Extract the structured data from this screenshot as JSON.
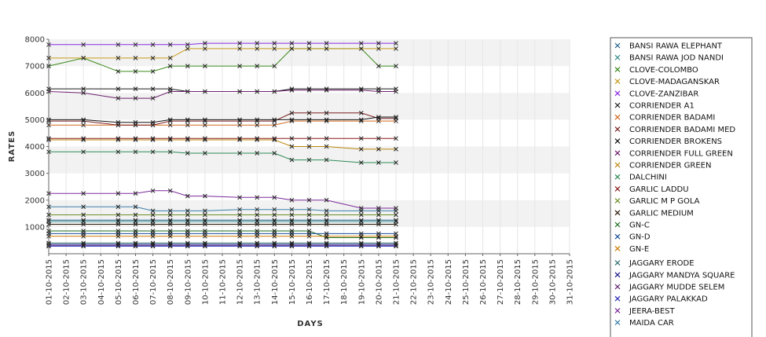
{
  "chart_data": {
    "type": "line",
    "xlabel": "DAYS",
    "ylabel": "RATES",
    "ylim": [
      0,
      8000
    ],
    "yticks": [
      1000,
      2000,
      3000,
      4000,
      5000,
      6000,
      7000,
      8000
    ],
    "grid": "horizontal bands",
    "legend_position": "right",
    "x": [
      "01-10-2015",
      "02-10-2015",
      "03-10-2015",
      "04-10-2015",
      "05-10-2015",
      "06-10-2015",
      "07-10-2015",
      "08-10-2015",
      "09-10-2015",
      "10-10-2015",
      "11-10-2015",
      "12-10-2015",
      "13-10-2015",
      "14-10-2015",
      "15-10-2015",
      "16-10-2015",
      "17-10-2015",
      "18-10-2015",
      "19-10-2015",
      "20-10-2015",
      "21-10-2015",
      "22-10-2015",
      "23-10-2015",
      "24-10-2015",
      "25-10-2015",
      "26-10-2015",
      "27-10-2015",
      "28-10-2015",
      "29-10-2015",
      "30-10-2015",
      "31-10-2015"
    ],
    "series": [
      {
        "name": "BANSI RAWA ELEPHANT",
        "color": "#1f5f8b",
        "x": [
          0,
          2,
          4,
          5,
          6,
          7,
          8,
          9,
          11,
          12,
          13,
          14,
          15,
          16,
          18,
          19,
          20
        ],
        "values": [
          1250,
          1250,
          1250,
          1250,
          1250,
          1250,
          1250,
          1250,
          1250,
          1250,
          1250,
          1250,
          1250,
          1250,
          1250,
          1250,
          1250
        ]
      },
      {
        "name": "BANSI RAWA JOD NANDI",
        "color": "#3a8f8f",
        "x": [
          0,
          2,
          4,
          5,
          6,
          7,
          8,
          9,
          11,
          12,
          13,
          14,
          15,
          16,
          18,
          19,
          20
        ],
        "values": [
          1200,
          1200,
          1200,
          1200,
          1200,
          1200,
          1200,
          1200,
          1200,
          1200,
          1200,
          1200,
          1200,
          1200,
          1200,
          1200,
          1200
        ]
      },
      {
        "name": "CLOVE-COLOMBO",
        "color": "#3b8a1a",
        "x": [
          0,
          2,
          4,
          5,
          6,
          7,
          8,
          9,
          11,
          12,
          13,
          14,
          15,
          16,
          18,
          19,
          20
        ],
        "values": [
          7000,
          7300,
          6800,
          6800,
          6800,
          7000,
          7000,
          7000,
          7000,
          7000,
          7000,
          7650,
          7650,
          7650,
          7650,
          7000,
          7000
        ]
      },
      {
        "name": "CLOVE-MADAGANSKAR",
        "color": "#c79a1a",
        "x": [
          0,
          2,
          4,
          5,
          6,
          7,
          8,
          9,
          11,
          12,
          13,
          14,
          15,
          16,
          18,
          19,
          20
        ],
        "values": [
          7300,
          7300,
          7300,
          7300,
          7300,
          7300,
          7650,
          7650,
          7650,
          7650,
          7650,
          7650,
          7650,
          7650,
          7650,
          7650,
          7650
        ]
      },
      {
        "name": "CLOVE-ZANZIBAR",
        "color": "#8a2be2",
        "x": [
          0,
          2,
          4,
          5,
          6,
          7,
          8,
          9,
          11,
          12,
          13,
          14,
          15,
          16,
          18,
          19,
          20
        ],
        "values": [
          7800,
          7800,
          7800,
          7800,
          7800,
          7800,
          7800,
          7850,
          7850,
          7850,
          7850,
          7850,
          7850,
          7850,
          7850,
          7850,
          7850
        ]
      },
      {
        "name": "CORRIENDER A1",
        "color": "#1a1a1a",
        "x": [
          0,
          2,
          4,
          5,
          6,
          7,
          8,
          9,
          11,
          12,
          13,
          14,
          15,
          16,
          18,
          19,
          20
        ],
        "values": [
          6150,
          6150,
          6150,
          6150,
          6150,
          6150,
          6050,
          6050,
          6050,
          6050,
          6050,
          6150,
          6150,
          6150,
          6150,
          6150,
          6150
        ]
      },
      {
        "name": "CORRIENDER BADAMI",
        "color": "#d2691e",
        "x": [
          0,
          2,
          4,
          5,
          6,
          7,
          8,
          9,
          11,
          12,
          13,
          14,
          15,
          16,
          18,
          19,
          20
        ],
        "values": [
          4800,
          4800,
          4800,
          4800,
          4800,
          4800,
          4800,
          4800,
          4800,
          4800,
          4800,
          4950,
          4950,
          4950,
          4950,
          4950,
          4950
        ]
      },
      {
        "name": "CORRIENDER BADAMI MED",
        "color": "#7a1f1f",
        "x": [
          0,
          2,
          4,
          5,
          6,
          7,
          8,
          9,
          11,
          12,
          13,
          14,
          15,
          16,
          18,
          19,
          20
        ],
        "values": [
          4950,
          4950,
          4800,
          4800,
          4800,
          4950,
          4950,
          4950,
          4950,
          4950,
          4950,
          5250,
          5250,
          5250,
          5250,
          5050,
          5050
        ]
      },
      {
        "name": "CORRIENDER BROKENS",
        "color": "#111111",
        "x": [
          0,
          2,
          4,
          5,
          6,
          7,
          8,
          9,
          11,
          12,
          13,
          14,
          15,
          16,
          18,
          19,
          20
        ],
        "values": [
          5000,
          5000,
          4900,
          4900,
          4900,
          5000,
          5000,
          5000,
          5000,
          5000,
          5000,
          5000,
          5000,
          5000,
          5000,
          5100,
          5100
        ]
      },
      {
        "name": "CORRIENDER FULL GREEN",
        "color": "#6b1f6b",
        "x": [
          0,
          2,
          4,
          5,
          6,
          7,
          8,
          9,
          11,
          12,
          13,
          14,
          15,
          16,
          18,
          19,
          20
        ],
        "values": [
          6050,
          6000,
          5800,
          5800,
          5800,
          6050,
          6050,
          6050,
          6050,
          6050,
          6050,
          6100,
          6100,
          6100,
          6100,
          6050,
          6050
        ]
      },
      {
        "name": "CORRIENDER GREEN",
        "color": "#b8860b",
        "x": [
          0,
          2,
          4,
          5,
          6,
          7,
          8,
          9,
          11,
          12,
          13,
          14,
          15,
          16,
          18,
          19,
          20
        ],
        "values": [
          4250,
          4250,
          4250,
          4250,
          4250,
          4250,
          4250,
          4250,
          4250,
          4250,
          4250,
          4000,
          4000,
          4000,
          3900,
          3900,
          3900
        ]
      },
      {
        "name": "DALCHINI",
        "color": "#2e8b57",
        "x": [
          0,
          2,
          4,
          5,
          6,
          7,
          8,
          9,
          11,
          12,
          13,
          14,
          15,
          16,
          18,
          19,
          20
        ],
        "values": [
          3800,
          3800,
          3800,
          3800,
          3800,
          3800,
          3750,
          3750,
          3750,
          3750,
          3750,
          3500,
          3500,
          3500,
          3400,
          3400,
          3400
        ]
      },
      {
        "name": "GARLIC LADDU",
        "color": "#8b1a1a",
        "x": [
          0,
          2,
          4,
          5,
          6,
          7,
          8,
          9,
          11,
          12,
          13,
          14,
          15,
          16,
          18,
          19,
          20
        ],
        "values": [
          4300,
          4300,
          4300,
          4300,
          4300,
          4300,
          4300,
          4300,
          4300,
          4300,
          4300,
          4300,
          4300,
          4300,
          4300,
          4300,
          4300
        ]
      },
      {
        "name": "GARLIC M P GOLA",
        "color": "#6b8e23",
        "x": [
          0,
          2,
          4,
          5,
          6,
          7,
          8,
          9,
          11,
          12,
          13,
          14,
          15,
          16,
          18,
          19,
          20
        ],
        "values": [
          1450,
          1450,
          1450,
          1450,
          1450,
          1450,
          1450,
          1450,
          1450,
          1450,
          1450,
          1450,
          1450,
          1450,
          1450,
          1450,
          1450
        ]
      },
      {
        "name": "GARLIC MEDIUM",
        "color": "#2b1a0a",
        "x": [
          0,
          2,
          4,
          5,
          6,
          7,
          8,
          9,
          11,
          12,
          13,
          14,
          15,
          16,
          18,
          19,
          20
        ],
        "values": [
          1100,
          1100,
          1100,
          1100,
          1100,
          1100,
          1100,
          1100,
          1100,
          1100,
          1100,
          1100,
          1100,
          1100,
          1100,
          1100,
          1100
        ]
      },
      {
        "name": "GN-C",
        "color": "#1a6b1a",
        "x": [
          0,
          2,
          4,
          5,
          6,
          7,
          8,
          9,
          11,
          12,
          13,
          14,
          15,
          16,
          18,
          19,
          20
        ],
        "values": [
          850,
          850,
          850,
          850,
          850,
          850,
          850,
          850,
          850,
          850,
          850,
          850,
          850,
          600,
          600,
          600,
          600
        ]
      },
      {
        "name": "GN-D",
        "color": "#1a4f9b",
        "x": [
          0,
          2,
          4,
          5,
          6,
          7,
          8,
          9,
          11,
          12,
          13,
          14,
          15,
          16,
          18,
          19,
          20
        ],
        "values": [
          750,
          750,
          750,
          750,
          750,
          750,
          750,
          750,
          750,
          750,
          750,
          750,
          750,
          750,
          750,
          750,
          750
        ]
      },
      {
        "name": "GN-E",
        "color": "#cc7a00",
        "x": [
          0,
          2,
          4,
          5,
          6,
          7,
          8,
          9,
          11,
          12,
          13,
          14,
          15,
          16,
          18,
          19,
          20
        ],
        "values": [
          650,
          650,
          650,
          650,
          650,
          650,
          650,
          650,
          650,
          650,
          650,
          650,
          650,
          650,
          650,
          650,
          650
        ]
      },
      {
        "name": "JAGGARY ERODE",
        "color": "#2f6f6f",
        "x": [
          0,
          2,
          4,
          5,
          6,
          7,
          8,
          9,
          11,
          12,
          13,
          14,
          15,
          16,
          18,
          19,
          20
        ],
        "values": [
          400,
          400,
          400,
          400,
          400,
          400,
          400,
          400,
          400,
          400,
          400,
          400,
          400,
          400,
          400,
          400,
          400
        ]
      },
      {
        "name": "JAGGARY MANDYA SQUARE",
        "color": "#1a1a8b",
        "x": [
          0,
          2,
          4,
          5,
          6,
          7,
          8,
          9,
          11,
          12,
          13,
          14,
          15,
          16,
          18,
          19,
          20
        ],
        "values": [
          350,
          350,
          350,
          350,
          350,
          350,
          350,
          350,
          350,
          350,
          350,
          350,
          350,
          350,
          350,
          350,
          350
        ]
      },
      {
        "name": "JAGGARY MUDDE SELEM",
        "color": "#5b1a6b",
        "x": [
          0,
          2,
          4,
          5,
          6,
          7,
          8,
          9,
          11,
          12,
          13,
          14,
          15,
          16,
          18,
          19,
          20
        ],
        "values": [
          300,
          300,
          300,
          300,
          300,
          300,
          300,
          300,
          300,
          300,
          300,
          300,
          300,
          300,
          300,
          300,
          300
        ]
      },
      {
        "name": "JAGGARY PALAKKAD",
        "color": "#2a2ab8",
        "x": [
          0,
          2,
          4,
          5,
          6,
          7,
          8,
          9,
          11,
          12,
          13,
          14,
          15,
          16,
          18,
          19,
          20
        ],
        "values": [
          280,
          280,
          280,
          280,
          280,
          280,
          280,
          280,
          280,
          280,
          280,
          280,
          280,
          280,
          280,
          280,
          280
        ]
      },
      {
        "name": "JEERA-BEST",
        "color": "#7b2a9b",
        "x": [
          0,
          2,
          4,
          5,
          6,
          7,
          8,
          9,
          11,
          12,
          13,
          14,
          15,
          16,
          18,
          19,
          20
        ],
        "values": [
          2250,
          2250,
          2250,
          2250,
          2350,
          2350,
          2150,
          2150,
          2100,
          2100,
          2100,
          2000,
          2000,
          2000,
          1700,
          1700,
          1700
        ]
      },
      {
        "name": "MAIDA CAR",
        "color": "#3a7fa8",
        "x": [
          0,
          2,
          4,
          5,
          6,
          7,
          8,
          9,
          11,
          12,
          13,
          14,
          15,
          16,
          18,
          19,
          20
        ],
        "values": [
          1750,
          1750,
          1750,
          1750,
          1600,
          1600,
          1600,
          1600,
          1650,
          1650,
          1650,
          1650,
          1650,
          1600,
          1600,
          1600,
          1600
        ]
      }
    ]
  }
}
